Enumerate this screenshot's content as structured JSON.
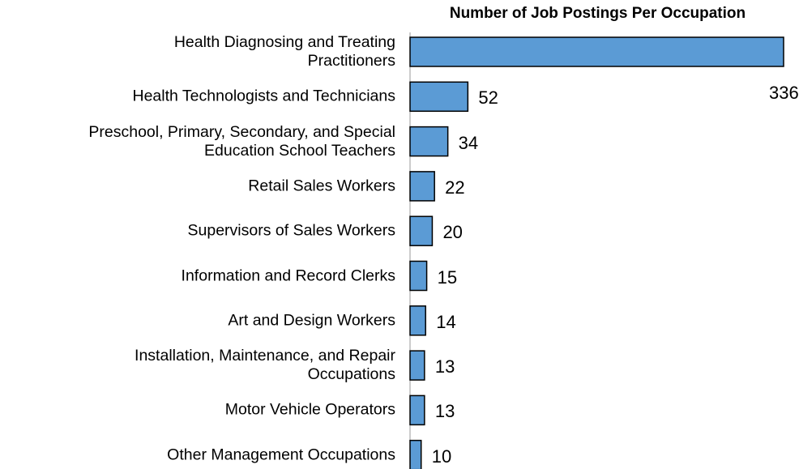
{
  "chart_data": {
    "type": "bar",
    "orientation": "horizontal",
    "title": "Number of Job Postings Per Occupation",
    "categories": [
      "Health Diagnosing and Treating\nPractitioners",
      "Health Technologists and Technicians",
      "Preschool, Primary, Secondary, and Special\nEducation School Teachers",
      "Retail Sales Workers",
      "Supervisors of Sales Workers",
      "Information and Record Clerks",
      "Art and Design Workers",
      "Installation, Maintenance, and Repair\nOccupations",
      "Motor Vehicle Operators",
      "Other Management Occupations"
    ],
    "values": [
      336,
      52,
      34,
      22,
      20,
      15,
      14,
      13,
      13,
      10
    ],
    "color": "#5b9bd5"
  }
}
